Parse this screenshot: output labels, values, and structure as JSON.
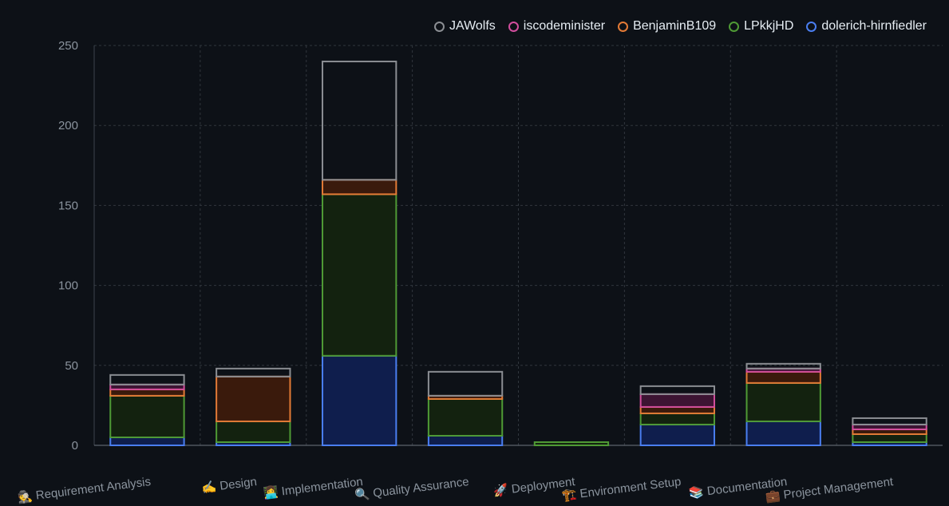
{
  "chart_data": {
    "type": "bar",
    "stacked": true,
    "categories": [
      "🕵️ Requirement Analysis",
      "✍️ Design",
      "👩‍💻 Implementation",
      "🔍 Quality Assurance",
      "🚀 Deployment",
      "🏗️ Environment Setup",
      "📚 Documentation",
      "💼 Project Management"
    ],
    "ylim": [
      0,
      250
    ],
    "yticks": [
      0,
      50,
      100,
      150,
      200,
      250
    ],
    "grid": true,
    "legend_position": "top-right",
    "series": [
      {
        "name": "dolerich-hirnfiedler",
        "stroke": "#4a7ef0",
        "fill": "#0f1e4d",
        "values": [
          5,
          2,
          56,
          6,
          0,
          13,
          15,
          2
        ]
      },
      {
        "name": "LPkkjHD",
        "stroke": "#4f9a35",
        "fill": "#13220f",
        "values": [
          26,
          13,
          101,
          23,
          2,
          7,
          24,
          5
        ]
      },
      {
        "name": "BenjaminB109",
        "stroke": "#e37a36",
        "fill": "#3a1a0c",
        "values": [
          4,
          28,
          9,
          2,
          0,
          4,
          7,
          3
        ]
      },
      {
        "name": "iscodeminister",
        "stroke": "#d24e9d",
        "fill": "#3d1433",
        "values": [
          3,
          0,
          0,
          0,
          0,
          8,
          2,
          3
        ]
      },
      {
        "name": "JAWolfs",
        "stroke": "#8b8e93",
        "fill": "none",
        "values": [
          6,
          5,
          74,
          15,
          0,
          5,
          3,
          4
        ]
      }
    ],
    "legend_order": [
      "JAWolfs",
      "iscodeminister",
      "BenjaminB109",
      "LPkkjHD",
      "dolerich-hirnfiedler"
    ]
  }
}
